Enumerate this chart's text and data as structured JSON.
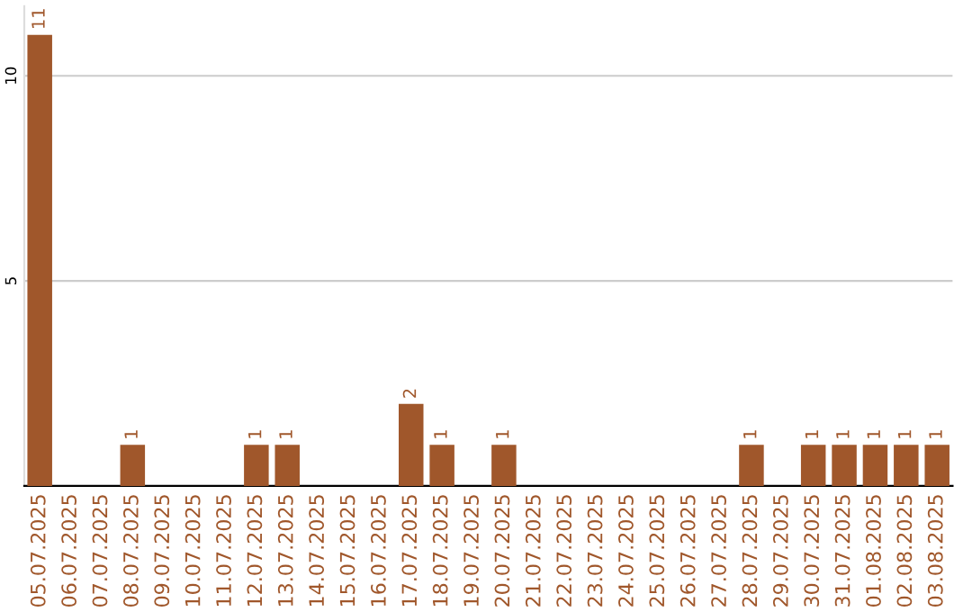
{
  "chart_data": {
    "type": "bar",
    "categories": [
      "05.07.2025",
      "06.07.2025",
      "07.07.2025",
      "08.07.2025",
      "09.07.2025",
      "10.07.2025",
      "11.07.2025",
      "12.07.2025",
      "13.07.2025",
      "14.07.2025",
      "15.07.2025",
      "16.07.2025",
      "17.07.2025",
      "18.07.2025",
      "19.07.2025",
      "20.07.2025",
      "21.07.2025",
      "22.07.2025",
      "23.07.2025",
      "24.07.2025",
      "25.07.2025",
      "26.07.2025",
      "27.07.2025",
      "28.07.2025",
      "29.07.2025",
      "30.07.2025",
      "31.07.2025",
      "01.08.2025",
      "02.08.2025",
      "03.08.2025"
    ],
    "values": [
      11,
      0,
      0,
      1,
      0,
      0,
      0,
      1,
      1,
      0,
      0,
      0,
      2,
      1,
      0,
      1,
      0,
      0,
      0,
      0,
      0,
      0,
      0,
      1,
      0,
      1,
      1,
      1,
      1,
      1
    ],
    "value_labels": [
      "11",
      null,
      null,
      "1",
      null,
      null,
      null,
      "1",
      "1",
      null,
      null,
      null,
      "2",
      "1",
      null,
      "1",
      null,
      null,
      null,
      null,
      null,
      null,
      null,
      "1",
      null,
      "1",
      "1",
      "1",
      "1",
      "1"
    ],
    "color": "#a0572b",
    "ylim": [
      0,
      11.7
    ],
    "yticks": [
      5,
      10
    ],
    "grid": "y",
    "legend": false
  }
}
